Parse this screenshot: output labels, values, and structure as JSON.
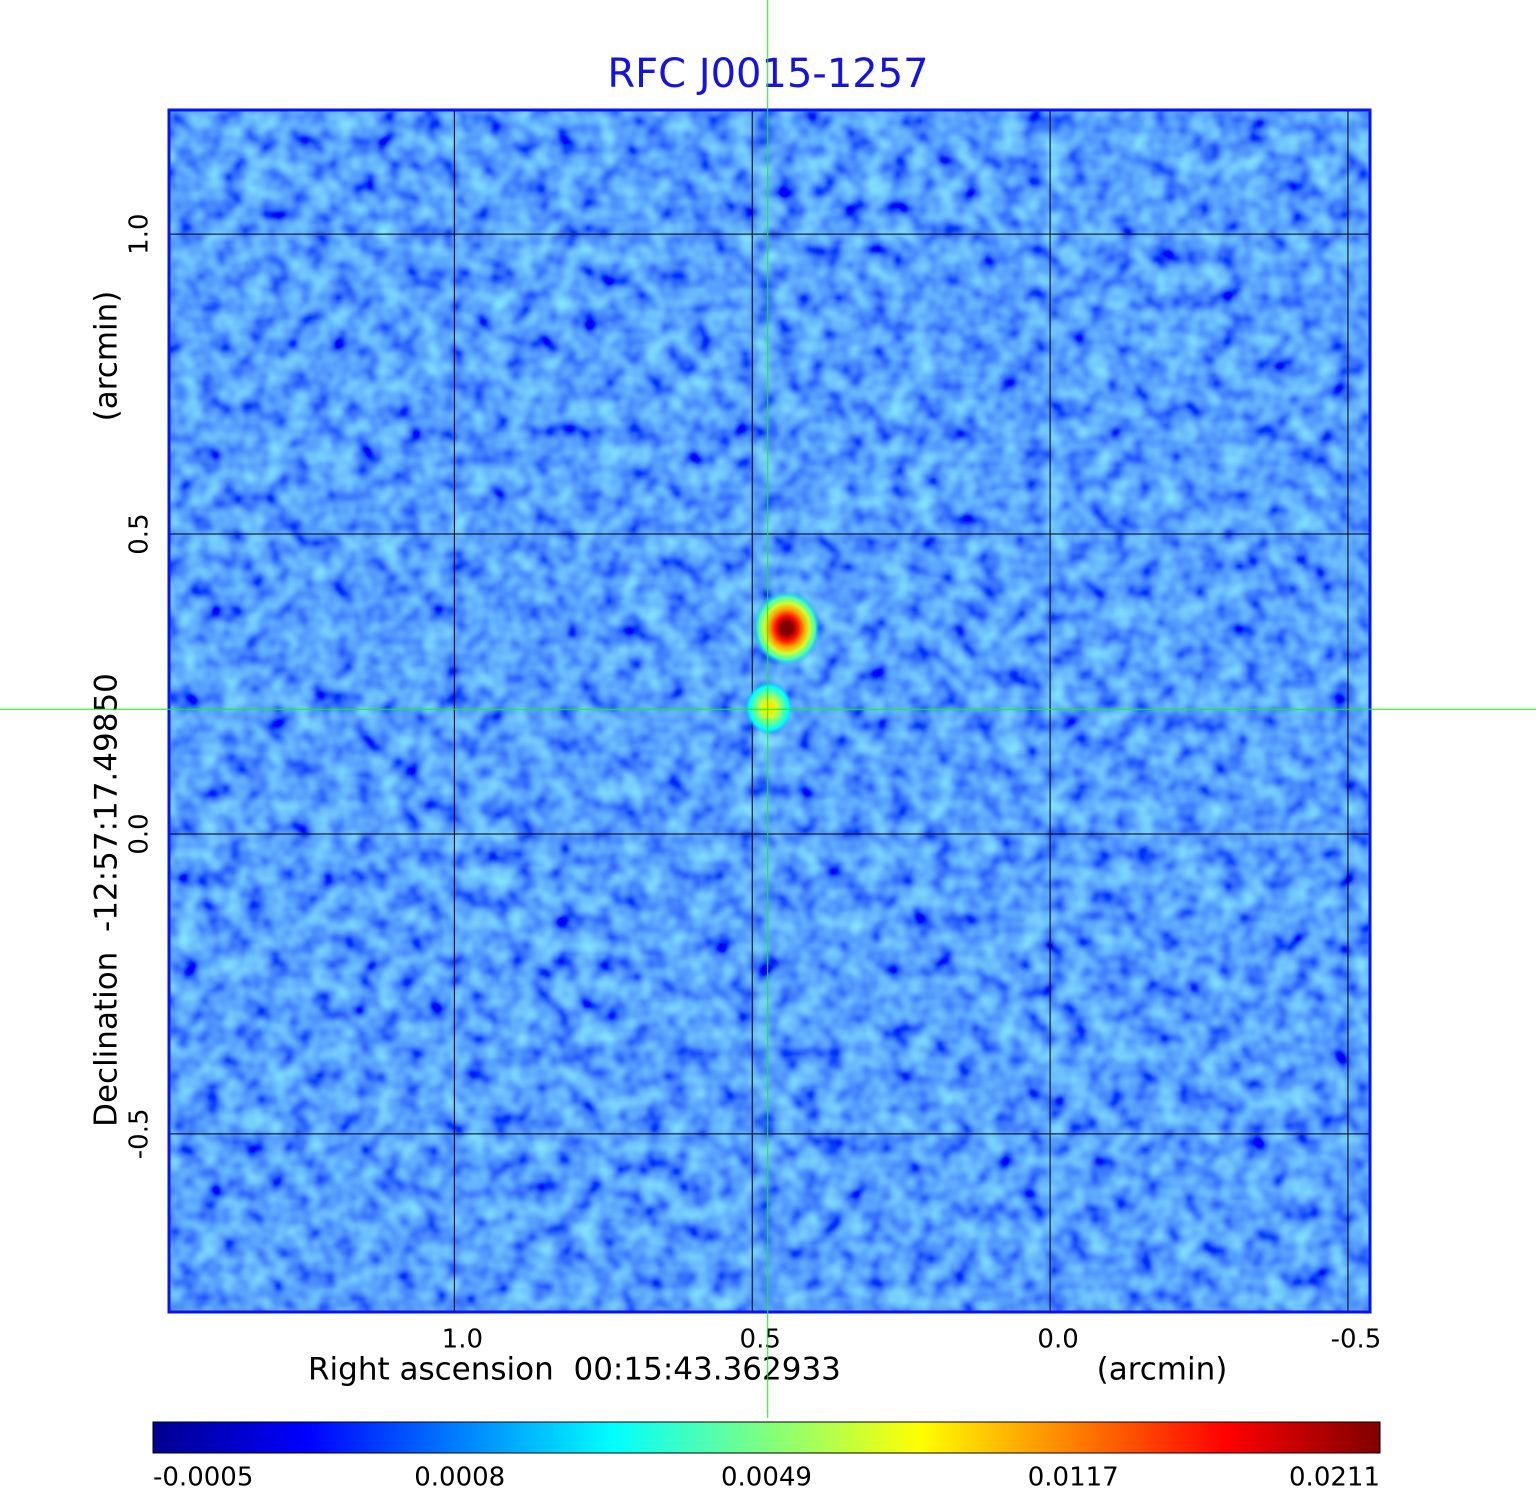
{
  "chart_data": {
    "type": "image",
    "title": "RFC J0015-1257",
    "title_color": "#1414dc",
    "xlabel": "Right ascension  00:15:43.362933",
    "xunit": "(arcmin)",
    "ylabel": "Declination  -12:57:17.49850",
    "yunit": "(arcmin)",
    "xlim": [
      1.479,
      -0.537
    ],
    "ylim": [
      -0.797,
      1.207
    ],
    "xticks": [
      {
        "value": 1,
        "label": "1.0"
      },
      {
        "value": 0.5,
        "label": "0.5"
      },
      {
        "value": 0,
        "label": "0.0"
      },
      {
        "value": -0.5,
        "label": "-0.5"
      }
    ],
    "yticks": [
      {
        "value": 1,
        "label": "1.0"
      },
      {
        "value": 0.5,
        "label": "0.5"
      },
      {
        "value": 0,
        "label": "0.0"
      },
      {
        "value": -0.5,
        "label": "-0.5"
      }
    ],
    "grid": true,
    "crosshair": {
      "x": 0.474,
      "y": 0.208,
      "color": "#00ff00"
    },
    "sources": {
      "x": [
        0.442,
        0.472
      ],
      "y": [
        0.343,
        0.21
      ],
      "values": [
        0.0211,
        0.009
      ]
    },
    "colorbar": {
      "ticks": [
        -0.0005,
        0.0008,
        0.0049,
        0.0117,
        0.0211
      ]
    }
  }
}
